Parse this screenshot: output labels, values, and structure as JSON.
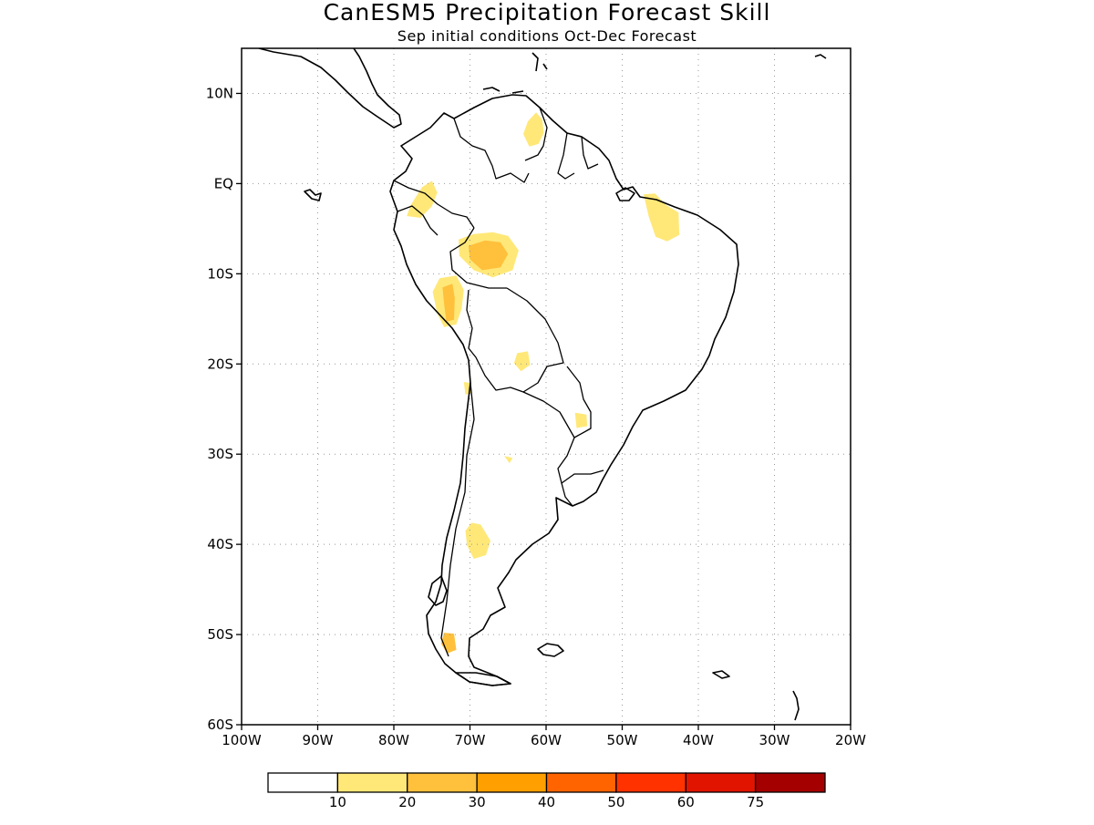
{
  "title": "CanESM5 Precipitation Forecast Skill",
  "subtitle": "Sep initial conditions  Oct-Dec Forecast",
  "map": {
    "lon_range": [
      -100,
      -20
    ],
    "lat_range": [
      -60,
      15
    ],
    "lat_ticks": [
      {
        "lat": 10,
        "label": "10N"
      },
      {
        "lat": 0,
        "label": "EQ"
      },
      {
        "lat": -10,
        "label": "10S"
      },
      {
        "lat": -20,
        "label": "20S"
      },
      {
        "lat": -30,
        "label": "30S"
      },
      {
        "lat": -40,
        "label": "40S"
      },
      {
        "lat": -50,
        "label": "50S"
      },
      {
        "lat": -60,
        "label": "60S"
      }
    ],
    "lon_ticks": [
      {
        "lon": -100,
        "label": "100W"
      },
      {
        "lon": -90,
        "label": "90W"
      },
      {
        "lon": -80,
        "label": "80W"
      },
      {
        "lon": -70,
        "label": "70W"
      },
      {
        "lon": -60,
        "label": "60W"
      },
      {
        "lon": -50,
        "label": "50W"
      },
      {
        "lon": -40,
        "label": "40W"
      },
      {
        "lon": -30,
        "label": "30W"
      },
      {
        "lon": -20,
        "label": "20W"
      }
    ],
    "grid": true
  },
  "legend": {
    "bins": [
      {
        "color": "#ffffff"
      },
      {
        "color": "#ffe878"
      },
      {
        "color": "#ffc03c"
      },
      {
        "color": "#ffa000"
      },
      {
        "color": "#ff6400"
      },
      {
        "color": "#ff3200"
      },
      {
        "color": "#e11400"
      },
      {
        "color": "#a50000"
      }
    ],
    "labels": [
      "10",
      "20",
      "30",
      "40",
      "50",
      "60",
      "75"
    ]
  },
  "skill_regions": [
    {
      "name": "guiana-highlands",
      "level": 1,
      "points": [
        [
          -63,
          5.5
        ],
        [
          -62.4,
          6.9
        ],
        [
          -61.3,
          7.9
        ],
        [
          -60.5,
          7.1
        ],
        [
          -60.3,
          5.6
        ],
        [
          -61,
          4.4
        ],
        [
          -62.2,
          4.1
        ]
      ]
    },
    {
      "name": "ecuador-peru-amazon",
      "level": 1,
      "points": [
        [
          -76.5,
          -3.8
        ],
        [
          -75,
          -2.5
        ],
        [
          -74.3,
          -1
        ],
        [
          -75,
          0.3
        ],
        [
          -76.3,
          -0.4
        ],
        [
          -77.8,
          -2.4
        ],
        [
          -78.3,
          -3.6
        ]
      ]
    },
    {
      "name": "western-amazon",
      "level": 1,
      "points": [
        [
          -71.5,
          -6.2
        ],
        [
          -69.5,
          -5.6
        ],
        [
          -67,
          -5.4
        ],
        [
          -65,
          -5.8
        ],
        [
          -63.6,
          -7.4
        ],
        [
          -64.4,
          -9.6
        ],
        [
          -67,
          -10.4
        ],
        [
          -69.5,
          -9.6
        ],
        [
          -71.4,
          -8
        ]
      ]
    },
    {
      "name": "western-amazon-core",
      "level": 2,
      "points": [
        [
          -70.2,
          -6.9
        ],
        [
          -68,
          -6.3
        ],
        [
          -66,
          -6.5
        ],
        [
          -65,
          -7.8
        ],
        [
          -66,
          -9.3
        ],
        [
          -68.4,
          -9.6
        ],
        [
          -70,
          -8.4
        ]
      ]
    },
    {
      "name": "northeast-brazil",
      "level": 1,
      "points": [
        [
          -45.7,
          -1.1
        ],
        [
          -44.2,
          -2.4
        ],
        [
          -42.6,
          -3.2
        ],
        [
          -42.5,
          -5.7
        ],
        [
          -44.1,
          -6.4
        ],
        [
          -45.6,
          -5.9
        ],
        [
          -46.5,
          -3.7
        ],
        [
          -47.2,
          -1.2
        ]
      ]
    },
    {
      "name": "central-andes-peru",
      "level": 1,
      "points": [
        [
          -74,
          -10.5
        ],
        [
          -71.8,
          -10.2
        ],
        [
          -70.8,
          -11.8
        ],
        [
          -71.1,
          -13.9
        ],
        [
          -71.8,
          -15.6
        ],
        [
          -73.4,
          -15.9
        ],
        [
          -74.3,
          -14.4
        ],
        [
          -74.9,
          -12
        ]
      ]
    },
    {
      "name": "central-andes-core",
      "level": 2,
      "points": [
        [
          -73.6,
          -11.5
        ],
        [
          -72.3,
          -11.1
        ],
        [
          -72,
          -12.7
        ],
        [
          -72.1,
          -15.1
        ],
        [
          -73.1,
          -15.3
        ],
        [
          -73.4,
          -13.3
        ]
      ]
    },
    {
      "name": "bolivia-lowlands",
      "level": 1,
      "points": [
        [
          -63.8,
          -18.8
        ],
        [
          -62.4,
          -18.6
        ],
        [
          -62.1,
          -20.1
        ],
        [
          -63.3,
          -20.8
        ],
        [
          -64.2,
          -19.9
        ]
      ]
    },
    {
      "name": "paraguay",
      "level": 1,
      "points": [
        [
          -56.2,
          -25.4
        ],
        [
          -54.7,
          -25.6
        ],
        [
          -54.6,
          -26.9
        ],
        [
          -56,
          -27.1
        ]
      ]
    },
    {
      "name": "northern-argentina",
      "level": 1,
      "points": [
        [
          -70.8,
          -22
        ],
        [
          -69.9,
          -22.1
        ],
        [
          -69.8,
          -23.2
        ],
        [
          -70.6,
          -23.4
        ]
      ]
    },
    {
      "name": "central-argentina",
      "level": 1,
      "points": [
        [
          -65.5,
          -30.2
        ],
        [
          -64.4,
          -30.4
        ],
        [
          -64.8,
          -31
        ]
      ]
    },
    {
      "name": "northern-patagonia",
      "level": 1,
      "points": [
        [
          -69.8,
          -37.6
        ],
        [
          -68.6,
          -37.8
        ],
        [
          -67.3,
          -39.6
        ],
        [
          -67.9,
          -41.2
        ],
        [
          -69.5,
          -41.6
        ],
        [
          -70.4,
          -40.1
        ],
        [
          -70.6,
          -38.5
        ]
      ]
    },
    {
      "name": "southern-patagonia",
      "level": 2,
      "points": [
        [
          -73.4,
          -49.8
        ],
        [
          -72.1,
          -49.9
        ],
        [
          -71.8,
          -51.7
        ],
        [
          -73,
          -52.1
        ],
        [
          -73.8,
          -51
        ]
      ]
    }
  ]
}
